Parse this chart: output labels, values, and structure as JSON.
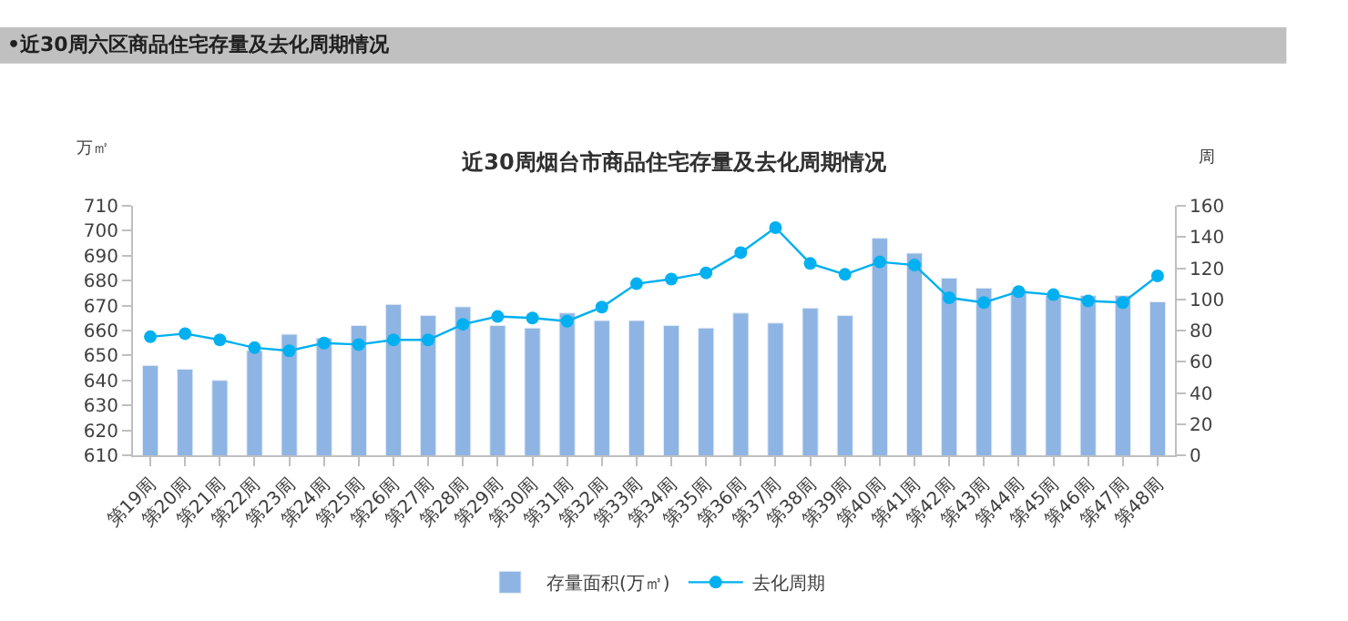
{
  "chart_data": {
    "type": "bar",
    "title": "近30周烟台市商品住宅存量及去化周期情况",
    "annotations": [
      "•近30周六区商品住宅存量及去化周期情况"
    ],
    "ylabel": "万㎡",
    "y2label": "周",
    "categories": [
      "第19周",
      "第20周",
      "第21周",
      "第22周",
      "第23周",
      "第24周",
      "第25周",
      "第26周",
      "第27周",
      "第28周",
      "第29周",
      "第30周",
      "第31周",
      "第32周",
      "第33周",
      "第34周",
      "第35周",
      "第36周",
      "第37周",
      "第38周",
      "第39周",
      "第40周",
      "第41周",
      "第42周",
      "第43周",
      "第44周",
      "第45周",
      "第46周",
      "第47周",
      "第48周"
    ],
    "series": [
      {
        "name": "存量面积(万㎡)",
        "color": "#8eb4e3",
        "values": [
          646,
          644.5,
          640,
          652,
          658.5,
          657,
          662,
          670.5,
          666,
          669.5,
          662,
          661,
          667,
          664,
          664,
          662,
          661,
          667,
          663,
          669,
          666,
          697,
          691,
          681,
          677,
          676,
          674,
          674,
          674,
          671.5
        ]
      },
      {
        "name": "去化周期",
        "type": "line",
        "axis": "y2",
        "color": "#00b0f0",
        "marker": "circle",
        "values": [
          76,
          78,
          74,
          69,
          67,
          72,
          71,
          74,
          74,
          84,
          89,
          88,
          86,
          95,
          110,
          113,
          117,
          130,
          146,
          123,
          116,
          124,
          122,
          101,
          98,
          105,
          103,
          99,
          98,
          115
        ]
      }
    ],
    "ylim": [
      610,
      710
    ],
    "yticks": [
      610,
      620,
      630,
      640,
      650,
      660,
      670,
      680,
      690,
      700,
      710
    ],
    "y2lim": [
      0,
      160
    ],
    "y2ticks": [
      0,
      20,
      40,
      60,
      80,
      100,
      120,
      140,
      160
    ],
    "legend": "bottom"
  }
}
